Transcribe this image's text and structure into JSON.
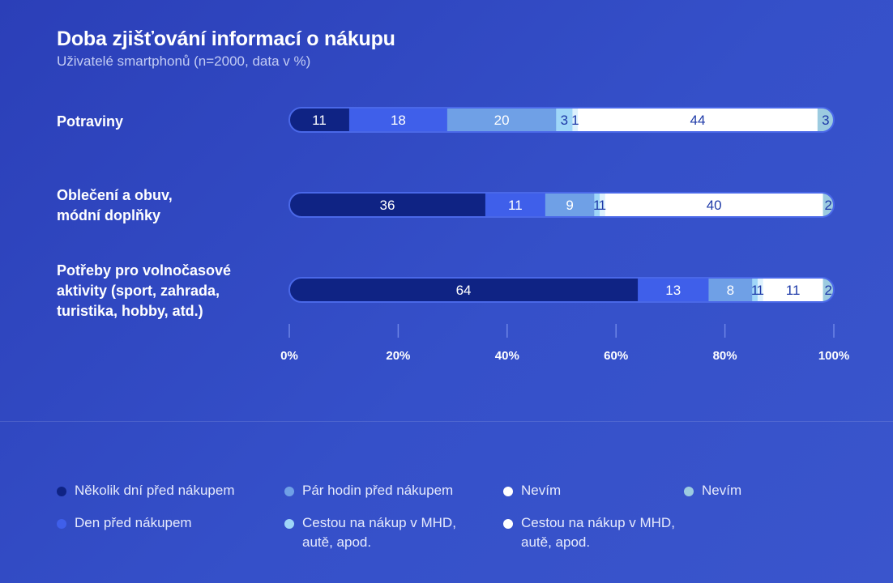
{
  "title": "Doba zjišťování informací o nákupu",
  "subtitle": "Uživatelé smartphonů (n=2000, data v %)",
  "colors": [
    "#0f2384",
    "#3f5fea",
    "#6fa0e6",
    "#9fd6f8",
    "#dcf1fd",
    "#ffffff",
    "#9ccbe0"
  ],
  "chart_data": {
    "type": "bar",
    "orientation": "horizontal",
    "stacked": true,
    "categories": [
      [
        "Potraviny"
      ],
      [
        "Oblečení a obuv,",
        "módní doplňky"
      ],
      [
        "Potřeby pro volnočasové",
        "aktivity (sport, zahrada,",
        "turistika, hobby, atd.)"
      ]
    ],
    "series": [
      {
        "name": "Několik dní před nákupem",
        "values": [
          11,
          36,
          64
        ]
      },
      {
        "name": "Den před nákupem",
        "values": [
          18,
          11,
          13
        ]
      },
      {
        "name": "Pár hodin před nákupem",
        "values": [
          20,
          9,
          8
        ]
      },
      {
        "name": "Cestou na nákup v MHD, autě, apod.",
        "values": [
          3,
          1,
          1
        ]
      },
      {
        "name": "",
        "values": [
          1,
          1,
          1
        ]
      },
      {
        "name": "Cestou na nákup v MHD, autě, apod.",
        "values": [
          44,
          40,
          11
        ]
      },
      {
        "name": "Nevím",
        "values": [
          3,
          2,
          2
        ]
      }
    ],
    "xlim": [
      0,
      100
    ],
    "xticks": [
      "0%",
      "20%",
      "40%",
      "60%",
      "80%",
      "100%"
    ]
  },
  "legend": [
    {
      "label": "Několik dní před nákupem",
      "color": "#0f2384"
    },
    {
      "label": "Den před nákupem",
      "color": "#3f5fea"
    },
    {
      "label": "Pár hodin před nákupem",
      "color": "#6fa0e6"
    },
    {
      "label": "Cestou na nákup v MHD, autě, apod.",
      "color": "#9fd6f8"
    },
    {
      "label": "Nevím",
      "color": "#ffffff"
    },
    {
      "label": "Cestou na nákup v MHD, autě, apod.",
      "color": "#ffffff"
    },
    {
      "label": "Nevím",
      "color": "#9ccbe0"
    }
  ]
}
